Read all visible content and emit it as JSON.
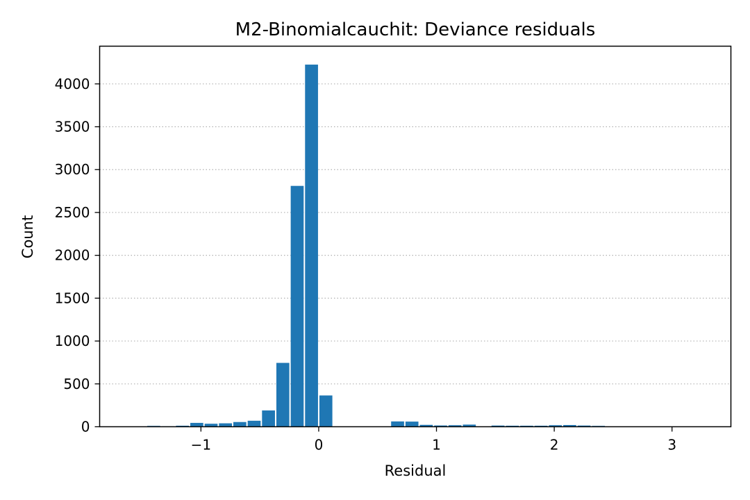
{
  "chart_data": {
    "type": "bar",
    "title": "M2-Binomialcauchit: Deviance residuals",
    "xlabel": "Residual",
    "ylabel": "Count",
    "xlim": [
      -1.86,
      3.5
    ],
    "ylim": [
      0,
      4440
    ],
    "x_ticks": [
      -1,
      0,
      1,
      2,
      3
    ],
    "x_tick_labels": [
      "−1",
      "0",
      "1",
      "2",
      "3"
    ],
    "y_ticks": [
      0,
      500,
      1000,
      1500,
      2000,
      2500,
      3000,
      3500,
      4000
    ],
    "y_tick_labels": [
      "0",
      "500",
      "1000",
      "1500",
      "2000",
      "2500",
      "3000",
      "3500",
      "4000"
    ],
    "grid": {
      "axis": "y",
      "style": "dotted"
    },
    "bar_color": "#1f77b4",
    "bin_width": 0.1218,
    "bins": [
      {
        "x": -1.5225,
        "count": 2
      },
      {
        "x": -1.4007,
        "count": 10
      },
      {
        "x": -1.2789,
        "count": 5
      },
      {
        "x": -1.1571,
        "count": 12
      },
      {
        "x": -1.0353,
        "count": 45
      },
      {
        "x": -0.9135,
        "count": 35
      },
      {
        "x": -0.7917,
        "count": 40
      },
      {
        "x": -0.6699,
        "count": 55
      },
      {
        "x": -0.5481,
        "count": 70
      },
      {
        "x": -0.4263,
        "count": 190
      },
      {
        "x": -0.3045,
        "count": 745
      },
      {
        "x": -0.1827,
        "count": 2810
      },
      {
        "x": -0.0609,
        "count": 4225
      },
      {
        "x": 0.0609,
        "count": 365
      },
      {
        "x": 0.1827,
        "count": 0
      },
      {
        "x": 0.3045,
        "count": 0
      },
      {
        "x": 0.4263,
        "count": 0
      },
      {
        "x": 0.5481,
        "count": 0
      },
      {
        "x": 0.6699,
        "count": 62
      },
      {
        "x": 0.7917,
        "count": 60
      },
      {
        "x": 0.9135,
        "count": 22
      },
      {
        "x": 1.0353,
        "count": 15
      },
      {
        "x": 1.1571,
        "count": 18
      },
      {
        "x": 1.2789,
        "count": 25
      },
      {
        "x": 1.4007,
        "count": 2
      },
      {
        "x": 1.5225,
        "count": 14
      },
      {
        "x": 1.6443,
        "count": 12
      },
      {
        "x": 1.7661,
        "count": 12
      },
      {
        "x": 1.8879,
        "count": 12
      },
      {
        "x": 2.0097,
        "count": 18
      },
      {
        "x": 2.1315,
        "count": 20
      },
      {
        "x": 2.2533,
        "count": 14
      },
      {
        "x": 2.3751,
        "count": 10
      },
      {
        "x": 2.4969,
        "count": 4
      },
      {
        "x": 2.6187,
        "count": 3
      },
      {
        "x": 2.7405,
        "count": 2
      },
      {
        "x": 2.8623,
        "count": 2
      },
      {
        "x": 2.9841,
        "count": 2
      },
      {
        "x": 3.1059,
        "count": 2
      },
      {
        "x": 3.2277,
        "count": 1
      }
    ]
  }
}
